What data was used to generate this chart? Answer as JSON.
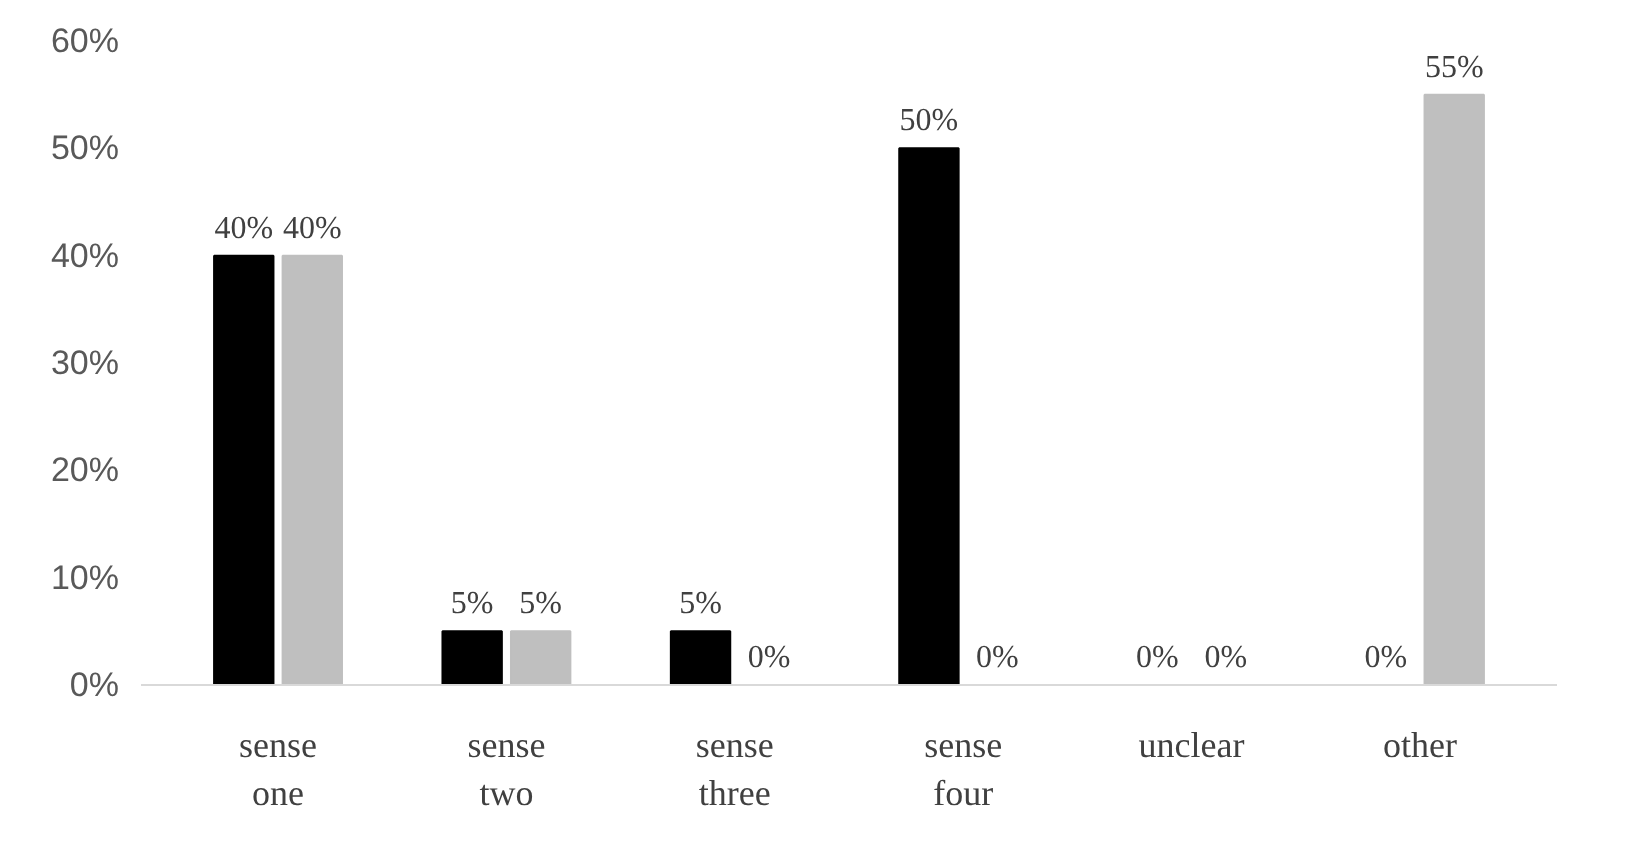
{
  "chart_data": {
    "type": "bar",
    "categories": [
      "sense one",
      "sense two",
      "sense three",
      "sense four",
      "unclear",
      "other"
    ],
    "series": [
      {
        "color": "#000000",
        "values": [
          40,
          5,
          5,
          50,
          0,
          0
        ],
        "value_labels": [
          "40%",
          "5%",
          "5%",
          "50%",
          "0%",
          "0%"
        ]
      },
      {
        "color": "#bfbfbf",
        "values": [
          40,
          5,
          0,
          0,
          0,
          55
        ],
        "value_labels": [
          "40%",
          "5%",
          "0%",
          "0%",
          "0%",
          "55%"
        ]
      }
    ],
    "ylim": [
      0,
      60
    ],
    "yticks": [
      {
        "value": 0,
        "label": "0%"
      },
      {
        "value": 10,
        "label": "10%"
      },
      {
        "value": 20,
        "label": "20%"
      },
      {
        "value": 30,
        "label": "30%"
      },
      {
        "value": 40,
        "label": "40%"
      },
      {
        "value": 50,
        "label": "50%"
      },
      {
        "value": 60,
        "label": "60%"
      }
    ]
  }
}
